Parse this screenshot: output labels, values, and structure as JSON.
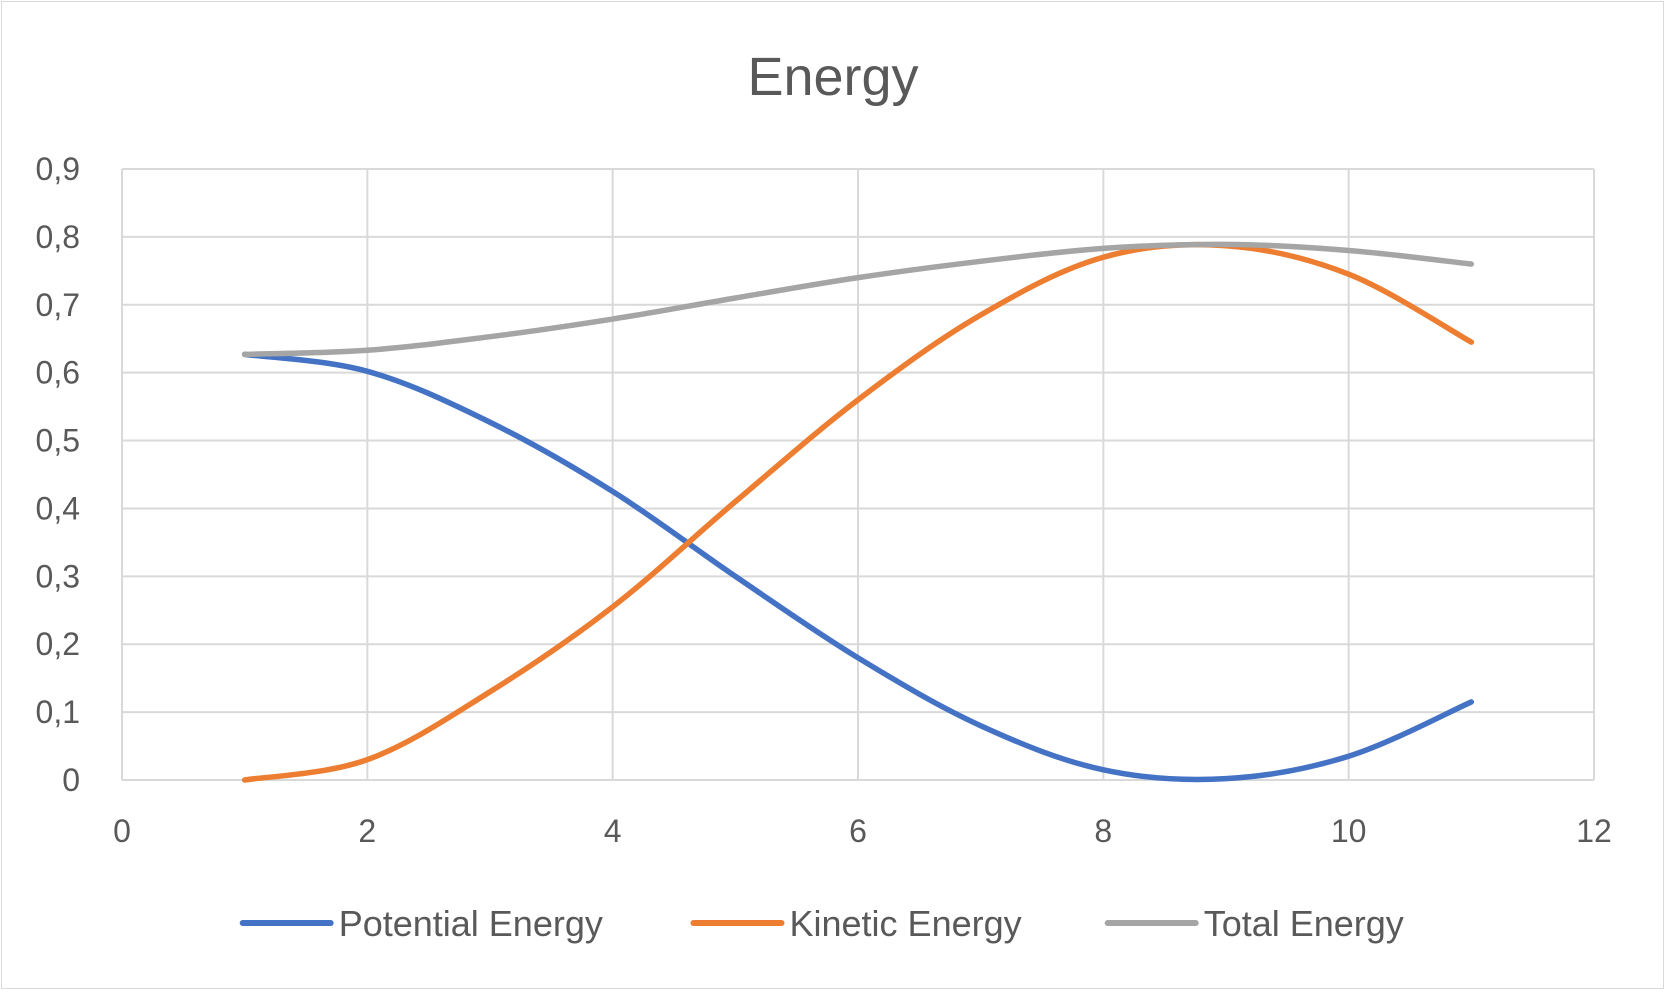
{
  "chart_data": {
    "type": "line",
    "title": "Energy",
    "xlabel": "",
    "ylabel": "",
    "xlim": [
      0,
      12
    ],
    "ylim": [
      0,
      0.9
    ],
    "x_ticks": [
      "0",
      "2",
      "4",
      "6",
      "8",
      "10",
      "12"
    ],
    "y_ticks": [
      "0",
      "0,1",
      "0,2",
      "0,3",
      "0,4",
      "0,5",
      "0,6",
      "0,7",
      "0,8",
      "0,9"
    ],
    "grid": true,
    "legend_position": "bottom",
    "x": [
      1,
      2,
      3,
      4,
      5,
      6,
      7,
      8,
      9,
      10,
      11
    ],
    "series": [
      {
        "name": "Potential Energy",
        "color": "#4472C4",
        "values": [
          0.627,
          0.602,
          0.527,
          0.425,
          0.3,
          0.18,
          0.08,
          0.015,
          0.002,
          0.035,
          0.115
        ]
      },
      {
        "name": "Kinetic Energy",
        "color": "#ED7D31",
        "values": [
          0.0,
          0.03,
          0.13,
          0.255,
          0.41,
          0.56,
          0.685,
          0.77,
          0.787,
          0.745,
          0.645
        ]
      },
      {
        "name": "Total Energy",
        "color": "#A5A5A5",
        "values": [
          0.627,
          0.633,
          0.653,
          0.679,
          0.71,
          0.74,
          0.764,
          0.783,
          0.789,
          0.78,
          0.76
        ]
      }
    ]
  }
}
